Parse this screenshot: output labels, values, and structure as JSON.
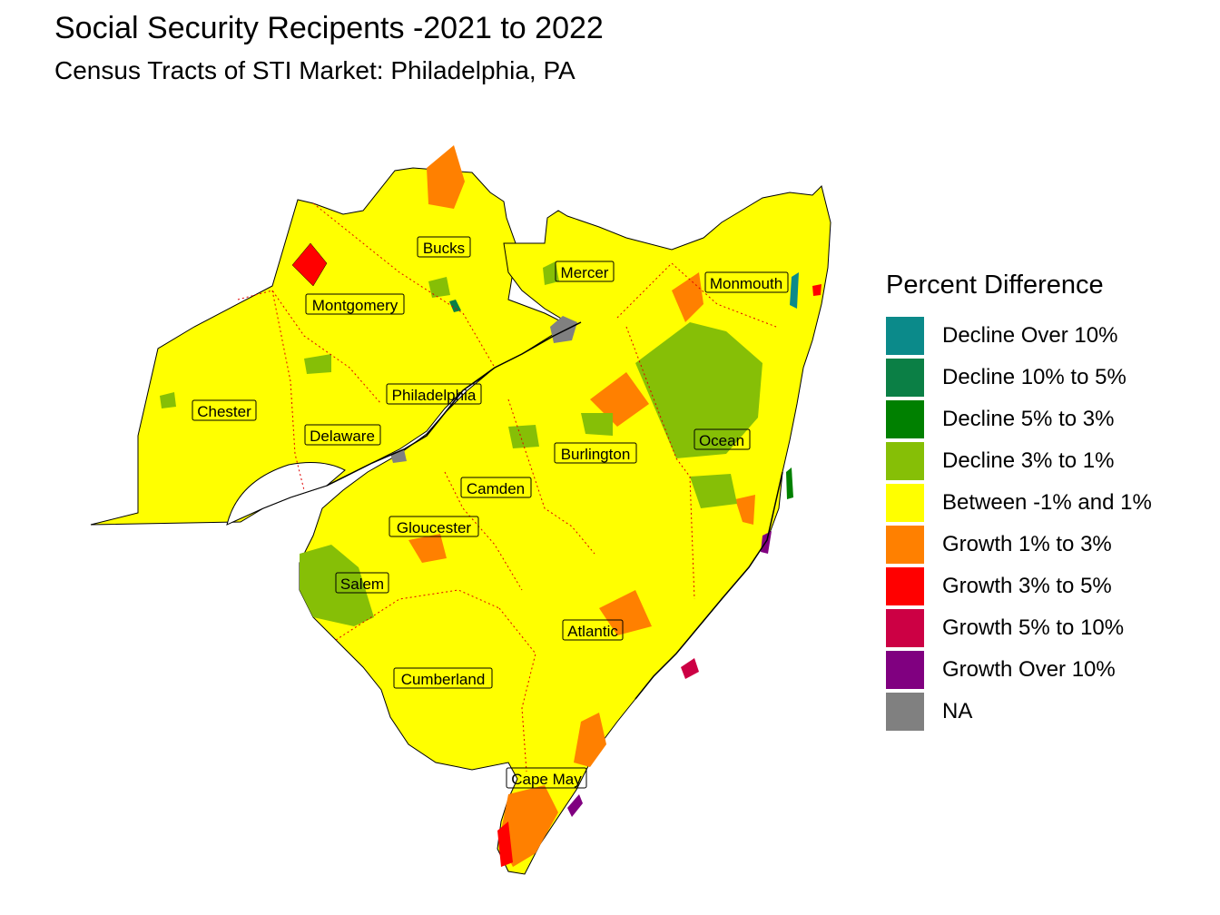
{
  "title": "Social Security Recipents -2021 to 2022",
  "subtitle": "Census Tracts of STI Market: Philadelphia, PA",
  "legend": {
    "title": "Percent Difference",
    "items": [
      {
        "label": "Decline Over 10%",
        "color": "#0B8A8A"
      },
      {
        "label": "Decline 10% to 5%",
        "color": "#0B7F45"
      },
      {
        "label": "Decline 5% to 3%",
        "color": "#008000"
      },
      {
        "label": "Decline 3% to 1%",
        "color": "#86BF06"
      },
      {
        "label": "Between -1% and 1%",
        "color": "#FFFF00"
      },
      {
        "label": "Growth 1% to 3%",
        "color": "#FF8000"
      },
      {
        "label": "Growth 3% to 5%",
        "color": "#FF0000"
      },
      {
        "label": "Growth 5% to 10%",
        "color": "#CC0044"
      },
      {
        "label": "Growth Over 10%",
        "color": "#800080"
      },
      {
        "label": "NA",
        "color": "#808080"
      }
    ]
  },
  "counties": [
    {
      "name": "Bucks"
    },
    {
      "name": "Mercer"
    },
    {
      "name": "Monmouth"
    },
    {
      "name": "Montgomery"
    },
    {
      "name": "Philadelphia"
    },
    {
      "name": "Chester"
    },
    {
      "name": "Delaware"
    },
    {
      "name": "Ocean"
    },
    {
      "name": "Burlington"
    },
    {
      "name": "Camden"
    },
    {
      "name": "Gloucester"
    },
    {
      "name": "Salem"
    },
    {
      "name": "Atlantic"
    },
    {
      "name": "Cumberland"
    },
    {
      "name": "Cape May"
    }
  ]
}
